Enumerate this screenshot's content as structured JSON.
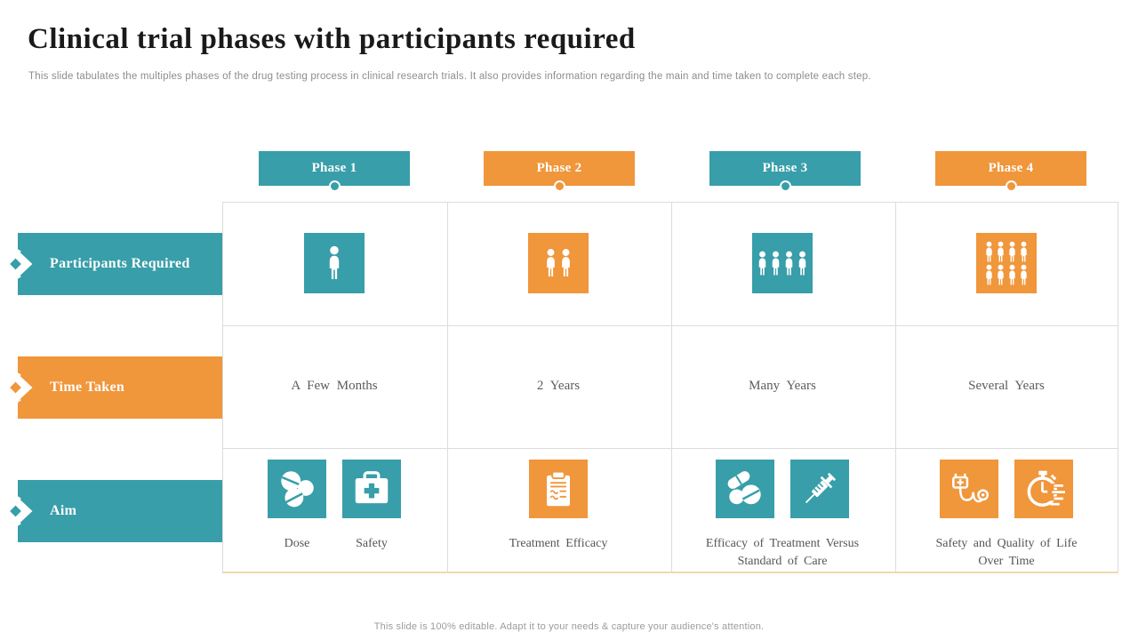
{
  "title": "Clinical trial phases with participants required",
  "subtitle": "This slide tabulates the multiples phases of the drug testing process in clinical research trials. It also provides information regarding the main and time taken to complete each step.",
  "footer": "This slide is 100% editable. Adapt it to your needs & capture your audience's attention.",
  "colors": {
    "teal": "#389ea9",
    "orange": "#f0963b",
    "grid_line": "#dcdcdc",
    "grid_bottom": "#eed9ae",
    "title_text": "#1a1a1a",
    "muted_text": "#8d8d8d",
    "cell_text": "#5c5c5c"
  },
  "phases": [
    {
      "label": "Phase 1",
      "color": "#389ea9"
    },
    {
      "label": "Phase 2",
      "color": "#f0963b"
    },
    {
      "label": "Phase 3",
      "color": "#389ea9"
    },
    {
      "label": "Phase 4",
      "color": "#f0963b"
    }
  ],
  "rows": [
    {
      "label": "Participants Required",
      "color": "#389ea9"
    },
    {
      "label": "Time Taken",
      "color": "#f0963b"
    },
    {
      "label": "Aim",
      "color": "#389ea9"
    }
  ],
  "participants": [
    {
      "count": 1,
      "icon": "person-icon",
      "color": "#389ea9"
    },
    {
      "count": 2,
      "icon": "person-icon",
      "color": "#f0963b"
    },
    {
      "count": 4,
      "icon": "person-icon",
      "color": "#389ea9"
    },
    {
      "count": 8,
      "icon": "person-icon",
      "color": "#f0963b"
    }
  ],
  "time_taken": [
    "A Few Months",
    "2 Years",
    "Many Years",
    "Several Years"
  ],
  "aim": [
    {
      "color": "#389ea9",
      "icons": [
        "pills-icon",
        "first-aid-kit-icon"
      ],
      "labels": [
        "Dose",
        "Safety"
      ]
    },
    {
      "color": "#f0963b",
      "icons": [
        "clipboard-icon"
      ],
      "labels": [
        "Treatment Efficacy"
      ]
    },
    {
      "color": "#389ea9",
      "icons": [
        "pills-icon",
        "syringe-icon"
      ],
      "labels": [
        "Efficacy of Treatment Versus Standard of Care"
      ]
    },
    {
      "color": "#f0963b",
      "icons": [
        "stethoscope-icon",
        "stopwatch-icon"
      ],
      "labels": [
        "Safety and Quality of Life Over Time"
      ]
    }
  ]
}
